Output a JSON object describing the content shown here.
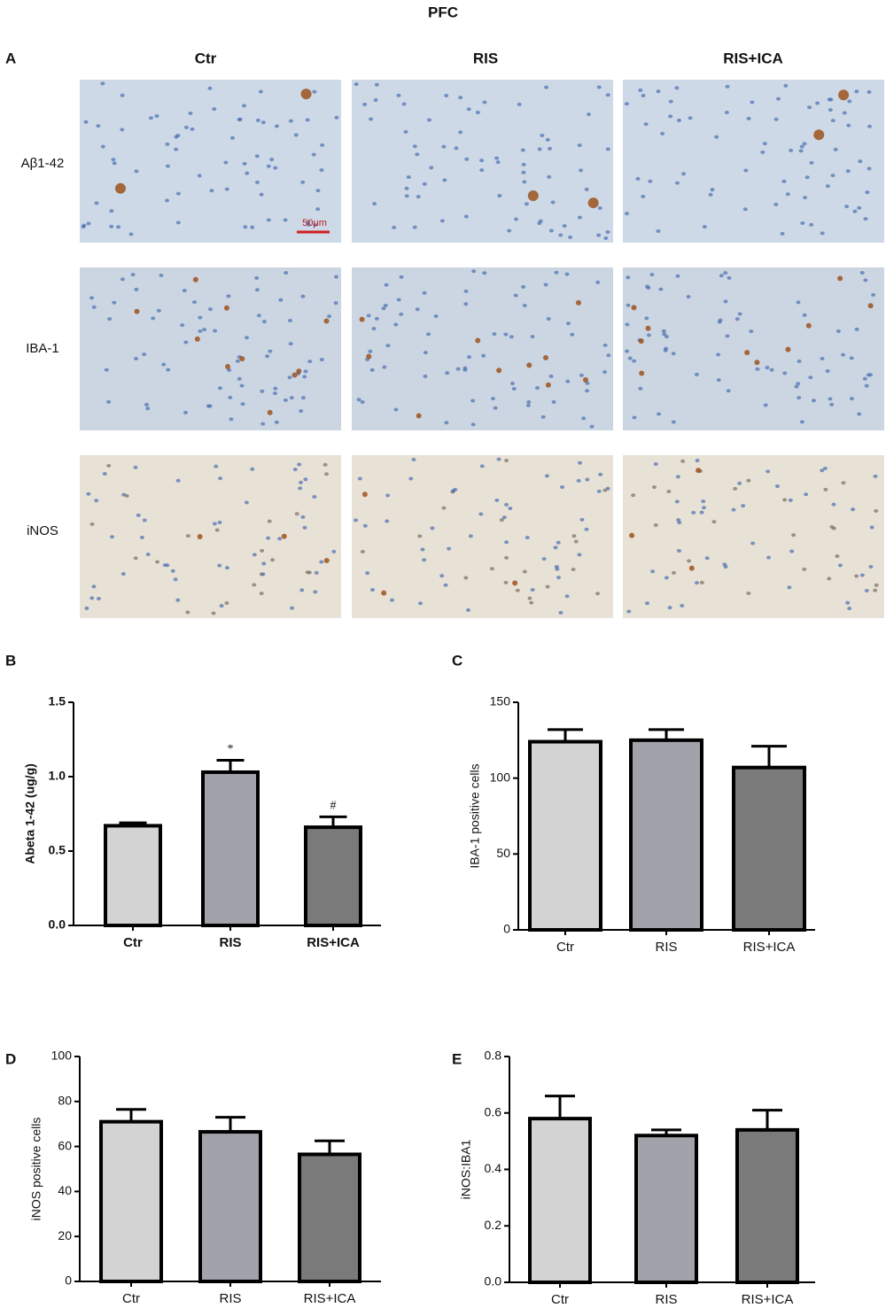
{
  "title": "PFC",
  "panel_a": {
    "letter": "A",
    "columns": [
      "Ctr",
      "RIS",
      "RIS+ICA"
    ],
    "rows": [
      "Aβ1-42",
      "IBA-1",
      "iNOS"
    ],
    "scale_bar": "50μm"
  },
  "chart_data": [
    {
      "type": "bar",
      "panel": "B",
      "y_label": "Abeta 1-42 (ug/g)",
      "categories": [
        "Ctr",
        "RIS",
        "RIS+ICA"
      ],
      "values": [
        0.67,
        1.03,
        0.66
      ],
      "errors": [
        0.02,
        0.08,
        0.07
      ],
      "annotations": [
        null,
        "*",
        "#"
      ],
      "colors": [
        "#d3d3d3",
        "#a2a2aa",
        "#7a7a7a"
      ],
      "ylim": [
        0,
        1.5
      ],
      "yticks": [
        {
          "value": 0,
          "label": "0.0"
        },
        {
          "value": 0.5,
          "label": "0.5"
        },
        {
          "value": 1,
          "label": "1.0"
        },
        {
          "value": 1.5,
          "label": "1.5"
        }
      ]
    },
    {
      "type": "bar",
      "panel": "C",
      "y_label": "IBA-1 positive cells",
      "categories": [
        "Ctr",
        "RIS",
        "RIS+ICA"
      ],
      "values": [
        124,
        125,
        107
      ],
      "errors": [
        8,
        7,
        14
      ],
      "colors": [
        "#d3d3d3",
        "#a2a2aa",
        "#7a7a7a"
      ],
      "ylim": [
        0,
        150
      ],
      "yticks": [
        0,
        50,
        100,
        150
      ]
    },
    {
      "type": "bar",
      "panel": "D",
      "y_label": "iNOS positive cells",
      "categories": [
        "Ctr",
        "RIS",
        "RIS+ICA"
      ],
      "values": [
        71,
        66.5,
        56.5
      ],
      "errors": [
        5.5,
        6.5,
        6
      ],
      "colors": [
        "#d3d3d3",
        "#a2a2aa",
        "#7a7a7a"
      ],
      "ylim": [
        0,
        100
      ],
      "yticks": [
        0,
        20,
        40,
        60,
        80,
        100
      ]
    },
    {
      "type": "bar",
      "panel": "E",
      "y_label": "iNOS:IBA1",
      "categories": [
        "Ctr",
        "RIS",
        "RIS+ICA"
      ],
      "values": [
        0.58,
        0.52,
        0.54
      ],
      "errors": [
        0.08,
        0.02,
        0.07
      ],
      "colors": [
        "#d3d3d3",
        "#a2a2aa",
        "#7a7a7a"
      ],
      "ylim": [
        0,
        0.8
      ],
      "yticks": [
        {
          "value": 0,
          "label": "0.0"
        },
        {
          "value": 0.2,
          "label": "0.2"
        },
        {
          "value": 0.4,
          "label": "0.4"
        },
        {
          "value": 0.6,
          "label": "0.6"
        },
        {
          "value": 0.8,
          "label": "0.8"
        }
      ]
    }
  ]
}
